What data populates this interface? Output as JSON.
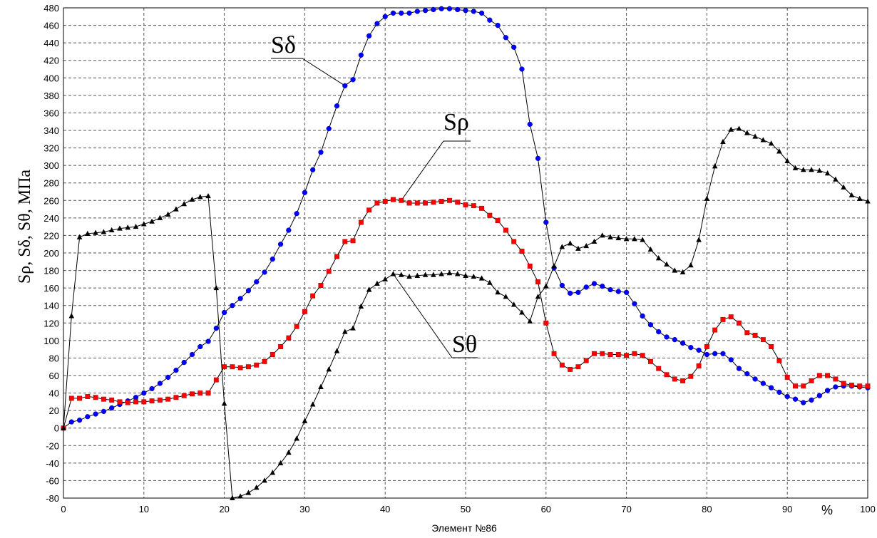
{
  "chart_data": {
    "type": "line",
    "ylabel": "Sρ, Sδ, Sθ, МПа",
    "xlabel": "Элемент №86",
    "x_unit": "%",
    "xlim": [
      0,
      100
    ],
    "ylim": [
      -80,
      480
    ],
    "xticks": [
      0,
      10,
      20,
      30,
      40,
      50,
      60,
      70,
      80,
      90,
      100
    ],
    "yticks": [
      -80,
      -60,
      -40,
      -20,
      0,
      20,
      40,
      60,
      80,
      100,
      120,
      140,
      160,
      180,
      200,
      220,
      240,
      260,
      280,
      300,
      320,
      340,
      360,
      380,
      400,
      420,
      440,
      460,
      480
    ],
    "grid": true,
    "series": [
      {
        "name": "Sδ",
        "color": "#0000ff",
        "marker": "circle",
        "x": [
          0,
          1,
          2,
          3,
          4,
          5,
          6,
          7,
          8,
          9,
          10,
          11,
          12,
          13,
          14,
          15,
          16,
          17,
          18,
          19,
          20,
          21,
          22,
          23,
          24,
          25,
          26,
          27,
          28,
          29,
          30,
          31,
          32,
          33,
          34,
          35,
          36,
          37,
          38,
          39,
          40,
          41,
          42,
          43,
          44,
          45,
          46,
          47,
          48,
          49,
          50,
          51,
          52,
          53,
          54,
          55,
          56,
          57,
          58,
          59,
          60,
          61,
          62,
          63,
          64,
          65,
          66,
          67,
          68,
          69,
          70,
          71,
          72,
          73,
          74,
          75,
          76,
          77,
          78,
          79,
          80,
          81,
          82,
          83,
          84,
          85,
          86,
          87,
          88,
          89,
          90,
          91,
          92,
          93,
          94,
          95,
          96,
          97,
          98,
          99,
          100
        ],
        "y": [
          0,
          7,
          9,
          13,
          16,
          19,
          23,
          27,
          31,
          35,
          40,
          45,
          51,
          58,
          66,
          75,
          84,
          93,
          99,
          114,
          132,
          140,
          148,
          157,
          167,
          178,
          193,
          210,
          226,
          245,
          269,
          295,
          315,
          342,
          368,
          391,
          398,
          426,
          448,
          462,
          470,
          474,
          474,
          474,
          476,
          477,
          478,
          479,
          479,
          478,
          477,
          476,
          474,
          466,
          460,
          446,
          435,
          410,
          347,
          308,
          235,
          183,
          163,
          154,
          155,
          161,
          165,
          162,
          158,
          156,
          155,
          142,
          128,
          118,
          110,
          104,
          101,
          97,
          92,
          89,
          84,
          85,
          85,
          78,
          68,
          62,
          56,
          51,
          46,
          41,
          36,
          33,
          29,
          32,
          37,
          43,
          47,
          48,
          48,
          47,
          46
        ]
      },
      {
        "name": "Sρ",
        "color": "#ff0000",
        "marker": "square",
        "x": [
          0,
          1,
          2,
          3,
          4,
          5,
          6,
          7,
          8,
          9,
          10,
          11,
          12,
          13,
          14,
          15,
          16,
          17,
          18,
          19,
          20,
          21,
          22,
          23,
          24,
          25,
          26,
          27,
          28,
          29,
          30,
          31,
          32,
          33,
          34,
          35,
          36,
          37,
          38,
          39,
          40,
          41,
          42,
          43,
          44,
          45,
          46,
          47,
          48,
          49,
          50,
          51,
          52,
          53,
          54,
          55,
          56,
          57,
          58,
          59,
          60,
          61,
          62,
          63,
          64,
          65,
          66,
          67,
          68,
          69,
          70,
          71,
          72,
          73,
          74,
          75,
          76,
          77,
          78,
          79,
          80,
          81,
          82,
          83,
          84,
          85,
          86,
          87,
          88,
          89,
          90,
          91,
          92,
          93,
          94,
          95,
          96,
          97,
          98,
          99,
          100
        ],
        "y": [
          0,
          34,
          34,
          36,
          35,
          33,
          32,
          30,
          29,
          30,
          30,
          31,
          32,
          33,
          35,
          37,
          39,
          40,
          40,
          55,
          70,
          70,
          69,
          70,
          72,
          76,
          84,
          93,
          103,
          116,
          133,
          151,
          163,
          179,
          196,
          213,
          214,
          235,
          249,
          257,
          259,
          261,
          260,
          257,
          257,
          257,
          258,
          259,
          260,
          258,
          255,
          254,
          251,
          243,
          237,
          226,
          213,
          202,
          185,
          167,
          120,
          85,
          72,
          67,
          70,
          77,
          85,
          85,
          84,
          84,
          83,
          85,
          83,
          76,
          68,
          61,
          56,
          54,
          59,
          71,
          93,
          112,
          124,
          127,
          120,
          109,
          106,
          101,
          93,
          77,
          58,
          48,
          48,
          54,
          60,
          60,
          56,
          51,
          49,
          48,
          48
        ]
      },
      {
        "name": "Sθ",
        "color": "#000000",
        "marker": "triangle",
        "x": [
          0,
          1,
          2,
          3,
          4,
          5,
          6,
          7,
          8,
          9,
          10,
          11,
          12,
          13,
          14,
          15,
          16,
          17,
          18,
          19,
          20,
          21,
          22,
          23,
          24,
          25,
          26,
          27,
          28,
          29,
          30,
          31,
          32,
          33,
          34,
          35,
          36,
          37,
          38,
          39,
          40,
          41,
          42,
          43,
          44,
          45,
          46,
          47,
          48,
          49,
          50,
          51,
          52,
          53,
          54,
          55,
          56,
          57,
          58,
          59,
          60,
          61,
          62,
          63,
          64,
          65,
          66,
          67,
          68,
          69,
          70,
          71,
          72,
          73,
          74,
          75,
          76,
          77,
          78,
          79,
          80,
          81,
          82,
          83,
          84,
          85,
          86,
          87,
          88,
          89,
          90,
          91,
          92,
          93,
          94,
          95,
          96,
          97,
          98,
          99,
          100
        ],
        "y": [
          0,
          128,
          218,
          222,
          223,
          224,
          226,
          228,
          229,
          230,
          233,
          236,
          240,
          244,
          250,
          256,
          261,
          264,
          265,
          160,
          28,
          -80,
          -78,
          -74,
          -68,
          -60,
          -51,
          -40,
          -28,
          -12,
          8,
          27,
          47,
          67,
          88,
          110,
          114,
          139,
          158,
          165,
          170,
          176,
          175,
          173,
          174,
          175,
          175,
          176,
          177,
          176,
          174,
          173,
          171,
          166,
          155,
          150,
          141,
          132,
          122,
          150,
          162,
          185,
          207,
          211,
          205,
          208,
          213,
          220,
          218,
          217,
          216,
          216,
          215,
          204,
          194,
          187,
          180,
          178,
          186,
          215,
          262,
          299,
          327,
          341,
          342,
          337,
          333,
          329,
          325,
          316,
          305,
          297,
          295,
          295,
          294,
          291,
          284,
          275,
          266,
          262,
          259
        ]
      }
    ],
    "annotations": [
      "Sδ",
      "Sρ",
      "Sθ"
    ]
  }
}
